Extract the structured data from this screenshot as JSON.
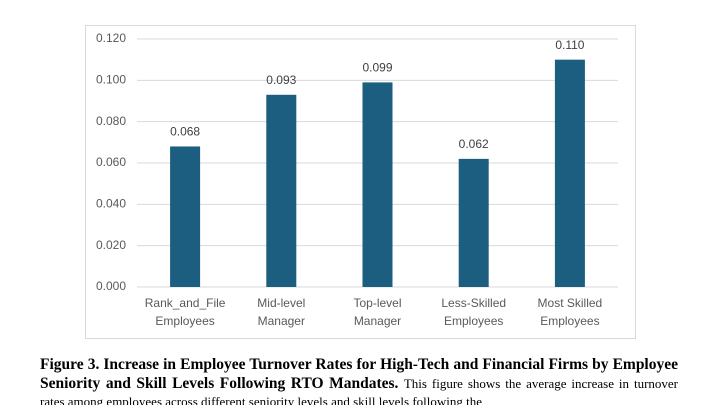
{
  "chart_data": {
    "type": "bar",
    "categories": [
      [
        "Rank_and_File",
        "Employees"
      ],
      [
        "Mid-level",
        "Manager"
      ],
      [
        "Top-level",
        "Manager"
      ],
      [
        "Less-Skilled",
        "Employees"
      ],
      [
        "Most Skilled",
        "Employees"
      ]
    ],
    "values": [
      0.068,
      0.093,
      0.099,
      0.062,
      0.11
    ],
    "value_labels": [
      "0.068",
      "0.093",
      "0.099",
      "0.062",
      "0.110"
    ],
    "color": "#1b5e80",
    "ylim": [
      0,
      0.12
    ],
    "yticks": [
      {
        "value": 0,
        "label": "0.000"
      },
      {
        "value": 0.02,
        "label": "0.020"
      },
      {
        "value": 0.04,
        "label": "0.040"
      },
      {
        "value": 0.06,
        "label": "0.060"
      },
      {
        "value": 0.08,
        "label": "0.080"
      },
      {
        "value": 0.1,
        "label": "0.100"
      },
      {
        "value": 0.12,
        "label": "0.120"
      }
    ],
    "grid": true
  },
  "figure_caption": {
    "title": "Figure 3. Increase in Employee Turnover Rates for High-Tech and Financial Firms by Employee Seniority and Skill Levels Following RTO Mandates.",
    "text": "This figure shows the average increase in turnover rates among employees across different seniority levels and skill levels following the"
  }
}
